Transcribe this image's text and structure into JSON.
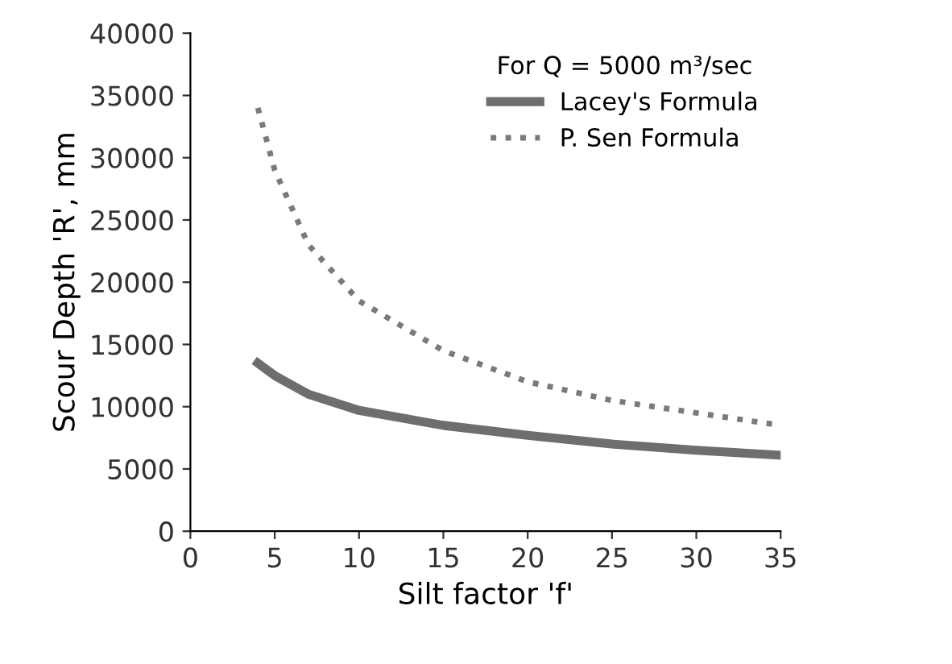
{
  "chart_data": {
    "type": "line",
    "xlabel": "Silt factor 'f'",
    "ylabel": "Scour Depth 'R', mm",
    "legend_title": "For Q = 5000 m³/sec",
    "legend": "top right",
    "grid": false,
    "xlim": [
      0,
      35
    ],
    "xticks": [
      0,
      5,
      10,
      15,
      20,
      25,
      30,
      35
    ],
    "ylim": [
      0,
      40000
    ],
    "yticks": [
      0,
      5000,
      10000,
      15000,
      20000,
      25000,
      30000,
      35000,
      40000
    ],
    "series": [
      {
        "name": "Lacey's Formula",
        "color": "#6e6e6e",
        "line_style": "solid",
        "x": [
          4,
          5,
          7,
          10,
          15,
          20,
          25,
          30,
          35
        ],
        "values": [
          13500,
          12500,
          11000,
          9700,
          8500,
          7700,
          7000,
          6500,
          6100
        ]
      },
      {
        "name": "P. Sen Formula",
        "color": "#7a7a7a",
        "line_style": "dotted",
        "x": [
          4,
          5,
          7,
          10,
          15,
          20,
          25,
          30,
          35
        ],
        "values": [
          34000,
          29000,
          23000,
          18500,
          14500,
          12000,
          10500,
          9500,
          8500
        ]
      }
    ]
  }
}
